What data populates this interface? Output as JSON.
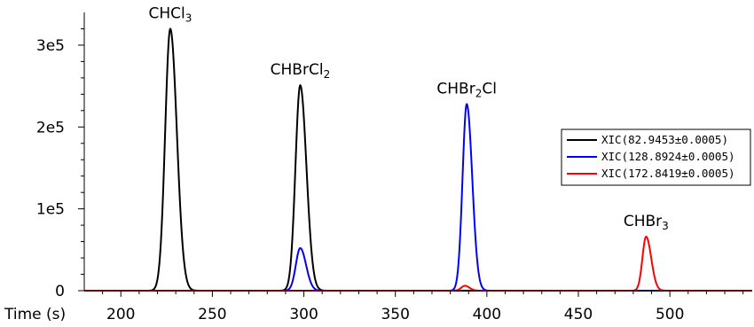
{
  "chart_data": {
    "type": "line",
    "xlabel": "Time (s)",
    "ylabel": "",
    "xlim": [
      180,
      545
    ],
    "ylim": [
      0,
      340000
    ],
    "grid": false,
    "legend_position": "right",
    "x_ticks": [
      200,
      250,
      300,
      350,
      400,
      450,
      500
    ],
    "y_ticks": [
      {
        "value": 0,
        "label": "0"
      },
      {
        "value": 100000,
        "label": "1e5"
      },
      {
        "value": 200000,
        "label": "2e5"
      },
      {
        "value": 300000,
        "label": "3e5"
      }
    ],
    "series": [
      {
        "name": "XIC(82.9453±0.0005)",
        "color": "#000000",
        "peaks": [
          {
            "rt": 227,
            "height": 320000,
            "rise": 2.8,
            "tail": 3.6
          },
          {
            "rt": 298,
            "height": 251000,
            "rise": 2.6,
            "tail": 3.4
          }
        ]
      },
      {
        "name": "XIC(128.8924±0.0005)",
        "color": "#0000ff",
        "peaks": [
          {
            "rt": 298,
            "height": 52000,
            "rise": 2.4,
            "tail": 3.2
          },
          {
            "rt": 389,
            "height": 228000,
            "rise": 2.3,
            "tail": 3.0
          }
        ]
      },
      {
        "name": "XIC(172.8419±0.0005)",
        "color": "#ff0000",
        "peaks": [
          {
            "rt": 388,
            "height": 6000,
            "rise": 2.0,
            "tail": 2.5
          },
          {
            "rt": 487,
            "height": 66000,
            "rise": 2.0,
            "tail": 2.8
          }
        ]
      }
    ],
    "annotations": [
      {
        "text": "CHCl",
        "sub": "3",
        "suffix": "",
        "x": 227,
        "y": 320000
      },
      {
        "text": "CHBrCl",
        "sub": "2",
        "suffix": "",
        "x": 298,
        "y": 251000
      },
      {
        "text": "CHBr",
        "sub": "2",
        "suffix": "Cl",
        "x": 389,
        "y": 228000
      },
      {
        "text": "CHBr",
        "sub": "3",
        "suffix": "",
        "x": 487,
        "y": 66000
      }
    ]
  }
}
